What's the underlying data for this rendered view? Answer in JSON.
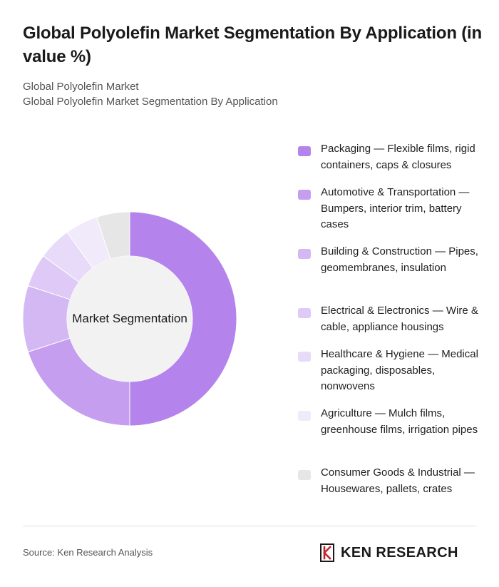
{
  "header": {
    "title": "Global Polyolefin Market Segmentation By Application (in value %)",
    "subtitle_1": "Global Polyolefin Market",
    "subtitle_2": "Global Polyolefin Market Segmentation By Application"
  },
  "chart_data": {
    "type": "pie",
    "variant": "donut",
    "center_label": "Market Segmentation",
    "legend_position": "right",
    "categories": [
      "Packaging — Flexible films, rigid containers, caps & closures",
      "Automotive & Transportation — Bumpers, interior trim, battery cases",
      "Building & Construction — Pipes, geomembranes, insulation",
      "Electrical & Electronics — Wire & cable, appliance housings",
      "Healthcare & Hygiene — Medical packaging, disposables, nonwovens",
      "Agriculture — Mulch films, greenhouse films, irrigation pipes",
      "Consumer Goods & Industrial — Housewares, pallets, crates"
    ],
    "values": [
      50,
      20,
      10,
      5,
      5,
      5,
      5
    ],
    "colors": [
      "#b583ec",
      "#c59ef0",
      "#d4b8f4",
      "#dfcaf7",
      "#e8daf9",
      "#f1eafb",
      "#e6e6e6"
    ]
  },
  "footer": {
    "source": "Source: Ken Research Analysis",
    "logo_text": "KEN RESEARCH",
    "logo_icon": "ken-research-k-icon"
  }
}
